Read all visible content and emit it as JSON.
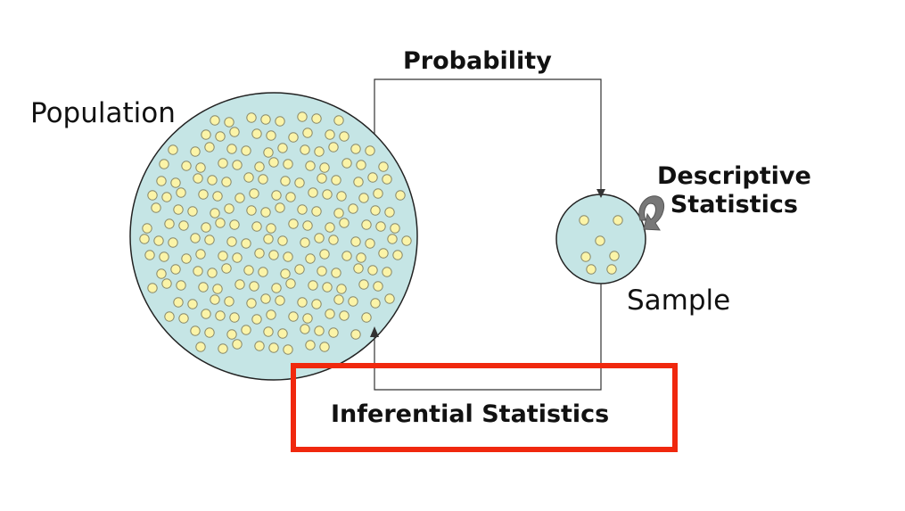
{
  "labels": {
    "population": "Population",
    "sample": "Sample",
    "probability": "Probability",
    "descriptive_line1": "Descriptive",
    "descriptive_line2": "Statistics",
    "inferential": "Inferential Statistics"
  },
  "colors": {
    "circle_fill": "#c5e5e5",
    "circle_stroke": "#222222",
    "dot_fill": "#fbf4a8",
    "dot_stroke": "#8a8a6a",
    "arrow": "#333333",
    "curved_arrow": "#777777",
    "highlight": "#f0280e"
  }
}
